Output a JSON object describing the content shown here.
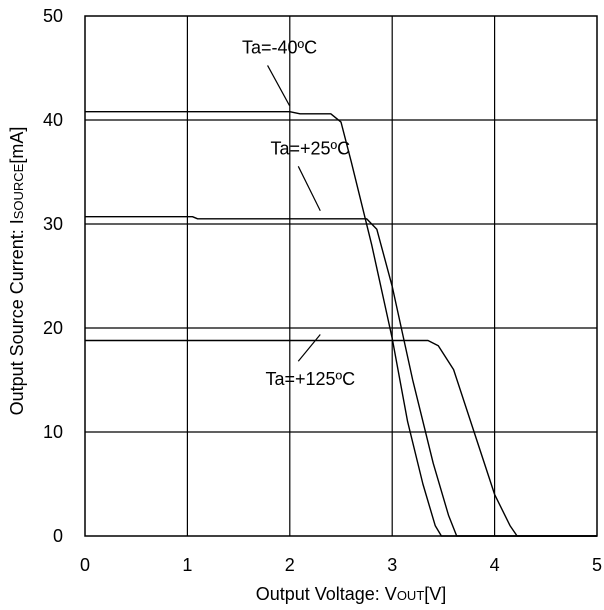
{
  "chart_data": {
    "type": "line",
    "title": "",
    "xlabel": "Output Voltage: V",
    "xlabel_sub": "OUT",
    "xlabel_tail": "[V]",
    "ylabel": "Output Source Current: I",
    "ylabel_sub": "SOURCE",
    "ylabel_tail": "[mA]",
    "xlim": [
      0,
      5
    ],
    "ylim": [
      0,
      50
    ],
    "x_ticks": [
      "0",
      "1",
      "2",
      "3",
      "4",
      "5"
    ],
    "y_ticks": [
      "0",
      "10",
      "20",
      "30",
      "40",
      "50"
    ],
    "grid": true,
    "line_color": "#000000",
    "series": [
      {
        "name": "Ta=-40ºC",
        "points": [
          [
            0,
            40.8
          ],
          [
            2.0,
            40.8
          ],
          [
            2.1,
            40.6
          ],
          [
            2.4,
            40.6
          ],
          [
            2.5,
            39.8
          ],
          [
            2.6,
            36.0
          ],
          [
            2.8,
            28.0
          ],
          [
            3.0,
            19.0
          ],
          [
            3.15,
            11.0
          ],
          [
            3.3,
            5.0
          ],
          [
            3.42,
            1.0
          ],
          [
            3.48,
            0
          ],
          [
            5.0,
            0
          ]
        ]
      },
      {
        "name": "Ta=+25ºC",
        "points": [
          [
            0,
            30.7
          ],
          [
            1.05,
            30.7
          ],
          [
            1.1,
            30.5
          ],
          [
            2.75,
            30.5
          ],
          [
            2.85,
            29.5
          ],
          [
            3.0,
            24.0
          ],
          [
            3.2,
            15.0
          ],
          [
            3.4,
            7.0
          ],
          [
            3.55,
            2.0
          ],
          [
            3.63,
            0
          ],
          [
            5.0,
            0
          ]
        ]
      },
      {
        "name": "Ta=+125ºC",
        "points": [
          [
            0,
            18.8
          ],
          [
            3.35,
            18.8
          ],
          [
            3.45,
            18.3
          ],
          [
            3.6,
            16.0
          ],
          [
            3.8,
            10.0
          ],
          [
            4.0,
            4.0
          ],
          [
            4.15,
            1.0
          ],
          [
            4.22,
            0
          ],
          [
            5.0,
            0
          ]
        ]
      }
    ],
    "annotations": [
      {
        "text": "Ta=-40ºC",
        "x": 1.9,
        "y": 46.4,
        "target_series": 0
      },
      {
        "text": "Ta=+25ºC",
        "x": 2.2,
        "y": 36.7,
        "target_series": 1
      },
      {
        "text": "Ta=+125ºC",
        "x": 2.2,
        "y": 14.5,
        "target_series": 2
      }
    ]
  }
}
